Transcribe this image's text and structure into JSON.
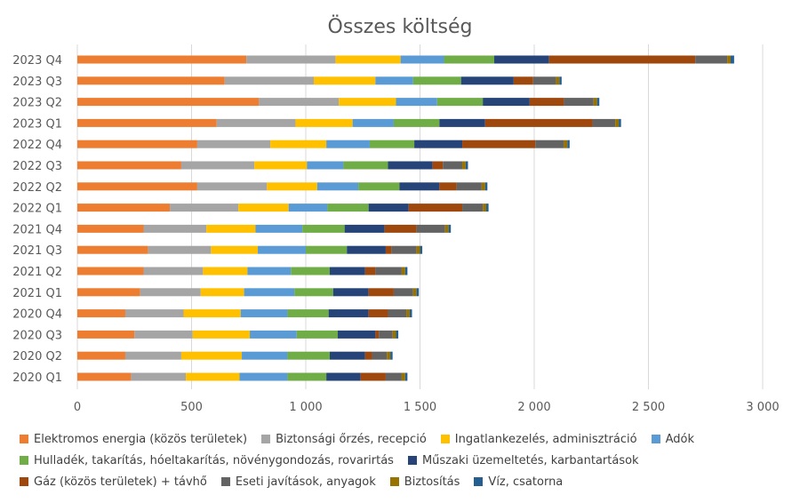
{
  "chart_data": {
    "type": "bar",
    "orientation": "horizontal",
    "stacked": true,
    "title": "Összes költség",
    "xlim": [
      0,
      3000
    ],
    "xticks": [
      0,
      500,
      1000,
      1500,
      2000,
      2500,
      3000
    ],
    "xtick_labels": [
      "0",
      "500",
      "1 000",
      "1 500",
      "2 000",
      "2 500",
      "3 000"
    ],
    "grid": true,
    "legend_position": "bottom",
    "categories": [
      "2020 Q1",
      "2020 Q2",
      "2020 Q3",
      "2020 Q4",
      "2021 Q1",
      "2021 Q2",
      "2021 Q3",
      "2021 Q4",
      "2022 Q1",
      "2022 Q2",
      "2022 Q3",
      "2022 Q4",
      "2023 Q1",
      "2023 Q2",
      "2023 Q3",
      "2023 Q4"
    ],
    "series": [
      {
        "name": "Elektromos energia (közös területek)",
        "color": "#ED7D31",
        "values": [
          235,
          210,
          250,
          210,
          275,
          290,
          310,
          290,
          405,
          525,
          455,
          525,
          610,
          795,
          645,
          740
        ]
      },
      {
        "name": "Biztonsági őrzés, recepció",
        "color": "#A5A5A5",
        "values": [
          240,
          245,
          255,
          255,
          265,
          260,
          275,
          275,
          300,
          305,
          320,
          320,
          345,
          350,
          390,
          390
        ]
      },
      {
        "name": "Ingatlankezelés, adminisztráció",
        "color": "#FFC000",
        "values": [
          235,
          265,
          250,
          250,
          190,
          195,
          205,
          215,
          220,
          220,
          230,
          245,
          250,
          250,
          270,
          285
        ]
      },
      {
        "name": "Adók",
        "color": "#5B9BD5",
        "values": [
          210,
          200,
          205,
          205,
          220,
          190,
          210,
          205,
          170,
          180,
          160,
          190,
          180,
          180,
          165,
          190
        ]
      },
      {
        "name": "Hulladék, takarítás, hóeltakarítás, növénygondozás, rovarirtás",
        "color": "#70AD47",
        "values": [
          170,
          185,
          180,
          180,
          170,
          170,
          180,
          185,
          180,
          180,
          195,
          195,
          200,
          200,
          210,
          220
        ]
      },
      {
        "name": "Műszaki üzemeltetés, karbantartások",
        "color": "#264478",
        "values": [
          150,
          155,
          165,
          175,
          155,
          155,
          170,
          175,
          175,
          175,
          195,
          210,
          200,
          205,
          230,
          240
        ]
      },
      {
        "name": "Gáz (közös területek) + távhő",
        "color": "#9E480E",
        "values": [
          110,
          30,
          15,
          85,
          110,
          45,
          25,
          140,
          235,
          75,
          45,
          320,
          470,
          150,
          85,
          640
        ]
      },
      {
        "name": "Eseti javítások, anyagok",
        "color": "#636363",
        "values": [
          70,
          65,
          60,
          80,
          85,
          115,
          110,
          125,
          90,
          110,
          85,
          125,
          100,
          130,
          100,
          140
        ]
      },
      {
        "name": "Biztosítás",
        "color": "#997300",
        "values": [
          15,
          15,
          15,
          15,
          15,
          15,
          15,
          15,
          15,
          15,
          15,
          15,
          15,
          15,
          15,
          15
        ]
      },
      {
        "name": "Víz, csatorna",
        "color": "#255E91",
        "values": [
          10,
          10,
          10,
          10,
          10,
          10,
          10,
          10,
          10,
          10,
          10,
          10,
          10,
          10,
          10,
          15
        ]
      }
    ]
  }
}
